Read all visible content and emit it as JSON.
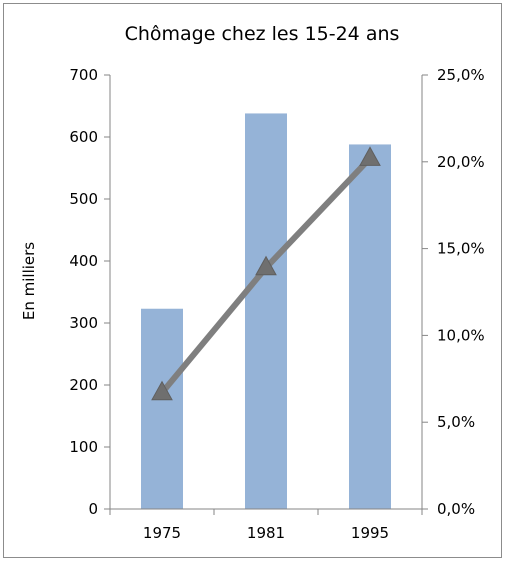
{
  "chart_data": {
    "type": "bar",
    "title": "Chômage chez les 15-24 ans",
    "ylabel": "En milliers",
    "categories": [
      "1975",
      "1981",
      "1995"
    ],
    "series": [
      {
        "axis": "left",
        "kind": "bar",
        "values": [
          323,
          638,
          588
        ],
        "color": "#95b3d7"
      },
      {
        "axis": "right",
        "kind": "line",
        "values": [
          6.7,
          13.9,
          20.2
        ],
        "color": "#7f7f7f",
        "marker": "triangle"
      }
    ],
    "left_axis": {
      "ylim": [
        0,
        700
      ],
      "ticks": [
        "0",
        "100",
        "200",
        "300",
        "400",
        "500",
        "600",
        "700"
      ]
    },
    "right_axis": {
      "ylim": [
        0,
        25
      ],
      "ticks": [
        "0,0%",
        "5,0%",
        "10,0%",
        "15,0%",
        "20,0%",
        "25,0%"
      ]
    },
    "grid": false,
    "legend": "none"
  }
}
